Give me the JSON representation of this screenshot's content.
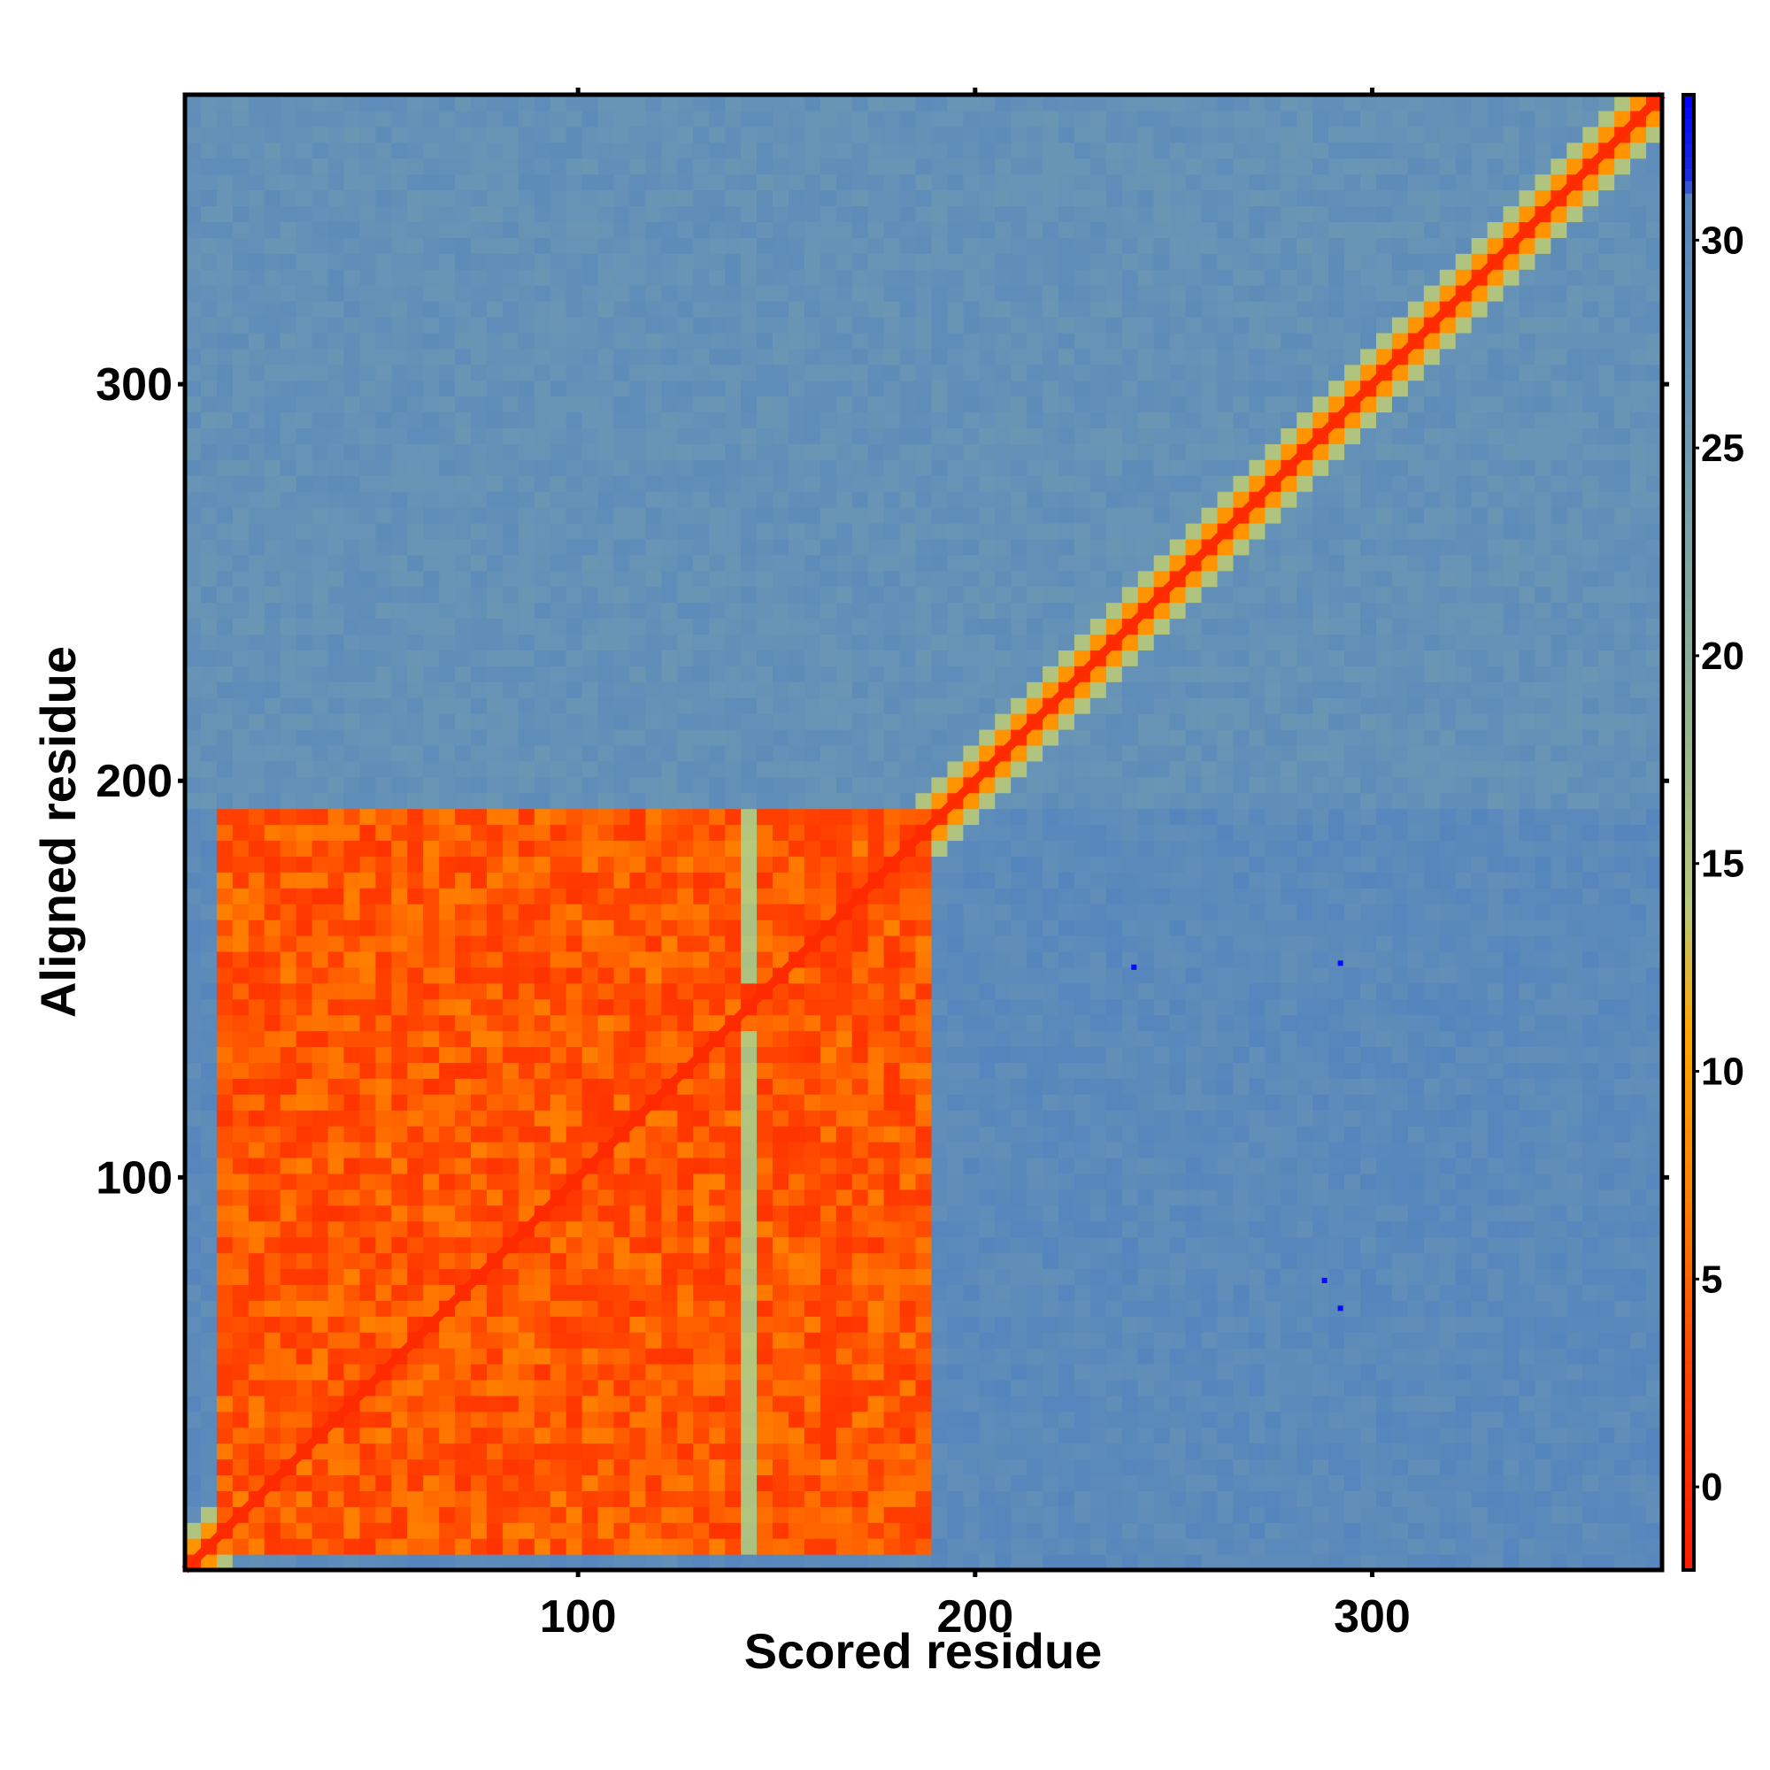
{
  "chart_data": {
    "type": "heatmap",
    "title": "",
    "xlabel": "Scored residue",
    "ylabel": "Aligned residue",
    "xlim": [
      1,
      373
    ],
    "ylim": [
      1,
      373
    ],
    "x_ticks": [
      100,
      200,
      300
    ],
    "y_ticks": [
      100,
      200,
      300
    ],
    "colorbar": {
      "range": [
        -2,
        33.5
      ],
      "ticks": [
        0,
        5,
        10,
        15,
        20,
        25,
        30
      ],
      "stops": [
        {
          "value": -2,
          "color": "#ff1a00"
        },
        {
          "value": 3,
          "color": "#ff4400"
        },
        {
          "value": 7,
          "color": "#ff8000"
        },
        {
          "value": 11,
          "color": "#ffa500"
        },
        {
          "value": 14,
          "color": "#b8c87a"
        },
        {
          "value": 20,
          "color": "#8aac98"
        },
        {
          "value": 26,
          "color": "#6a96b4"
        },
        {
          "value": 31,
          "color": "#5585bd"
        },
        {
          "value": 31.5,
          "color": "#1a2ee0"
        },
        {
          "value": 33.5,
          "color": "#0000ff"
        }
      ]
    },
    "regions": [
      {
        "name": "domain-block",
        "x": [
          9,
          189
        ],
        "y": [
          5,
          194
        ],
        "value_range": [
          0,
          6
        ]
      },
      {
        "name": "low-error-gap",
        "x": [
          140,
          144
        ],
        "y": [
          5,
          194
        ],
        "value": 14
      },
      {
        "name": "diagonal",
        "x": [
          1,
          373
        ],
        "y": [
          1,
          373
        ],
        "value": 0
      },
      {
        "name": "off-diagonal-upper",
        "x": [
          1,
          373
        ],
        "y": [
          195,
          373
        ],
        "value": 28
      },
      {
        "name": "off-diagonal-lower",
        "x": [
          190,
          373
        ],
        "y": [
          1,
          194
        ],
        "value": 30
      }
    ],
    "outliers": [
      {
        "x": 240,
        "y": 153,
        "value": 33
      },
      {
        "x": 292,
        "y": 154,
        "value": 33
      },
      {
        "x": 288,
        "y": 74,
        "value": 33
      },
      {
        "x": 292,
        "y": 67,
        "value": 33
      }
    ],
    "grid": false
  }
}
